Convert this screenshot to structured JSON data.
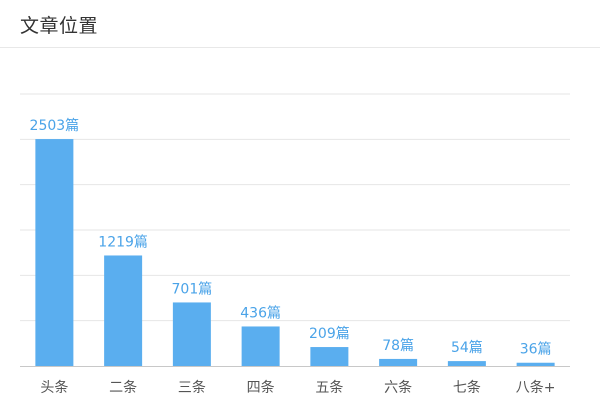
{
  "header": {
    "title": "文章位置"
  },
  "chart_data": {
    "type": "bar",
    "title": "文章位置",
    "xlabel": "",
    "ylabel": "",
    "categories": [
      "头条",
      "二条",
      "三条",
      "四条",
      "五条",
      "六条",
      "七条",
      "八条+"
    ],
    "values": [
      2503,
      1219,
      701,
      436,
      209,
      78,
      54,
      36
    ],
    "value_suffix": "篇",
    "ylim": [
      0,
      3000
    ],
    "grid": true,
    "legend": "none",
    "colors": {
      "bar": "#5aaeef",
      "label": "#4aa3e8"
    }
  }
}
